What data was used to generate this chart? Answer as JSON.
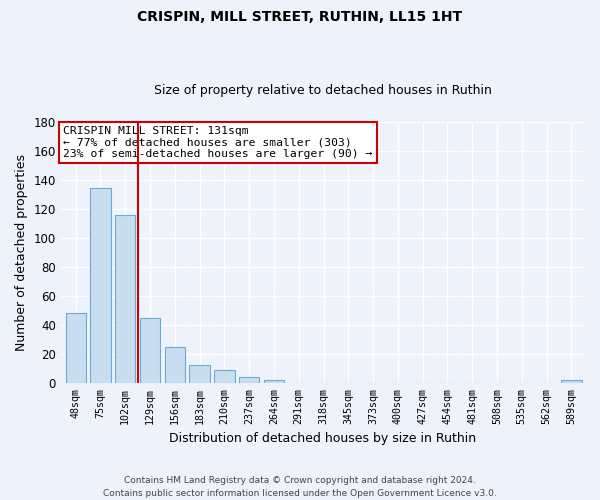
{
  "title": "CRISPIN, MILL STREET, RUTHIN, LL15 1HT",
  "subtitle": "Size of property relative to detached houses in Ruthin",
  "xlabel": "Distribution of detached houses by size in Ruthin",
  "ylabel": "Number of detached properties",
  "bin_labels": [
    "48sqm",
    "75sqm",
    "102sqm",
    "129sqm",
    "156sqm",
    "183sqm",
    "210sqm",
    "237sqm",
    "264sqm",
    "291sqm",
    "318sqm",
    "345sqm",
    "373sqm",
    "400sqm",
    "427sqm",
    "454sqm",
    "481sqm",
    "508sqm",
    "535sqm",
    "562sqm",
    "589sqm"
  ],
  "bar_values": [
    48,
    134,
    116,
    45,
    25,
    12,
    9,
    4,
    2,
    0,
    0,
    0,
    0,
    0,
    0,
    0,
    0,
    0,
    0,
    0,
    2
  ],
  "bar_color": "#c9ddf0",
  "bar_edge_color": "#6aaad4",
  "vline_color": "#cc0000",
  "annotation_line1": "CRISPIN MILL STREET: 131sqm",
  "annotation_line2": "← 77% of detached houses are smaller (303)",
  "annotation_line3": "23% of semi-detached houses are larger (90) →",
  "annotation_box_color": "white",
  "annotation_box_edge": "#cc0000",
  "ylim": [
    0,
    180
  ],
  "yticks": [
    0,
    20,
    40,
    60,
    80,
    100,
    120,
    140,
    160,
    180
  ],
  "footer_line1": "Contains HM Land Registry data © Crown copyright and database right 2024.",
  "footer_line2": "Contains public sector information licensed under the Open Government Licence v3.0.",
  "bg_color": "#eef2fa",
  "grid_color": "#ffffff",
  "title_fontsize": 10,
  "subtitle_fontsize": 9
}
